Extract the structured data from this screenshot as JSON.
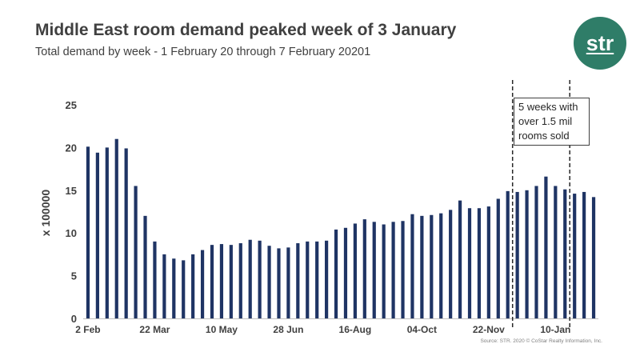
{
  "header": {
    "title": "Middle East room demand peaked week of 3 January",
    "subtitle": "Total demand by week - 1 February 20 through 7 February 20201"
  },
  "logo": {
    "text": "str",
    "color": "#2f7d68"
  },
  "source": "Source: STR. 2020 © CoStar Realty Information, Inc.",
  "chart_data": {
    "type": "bar",
    "ylabel": "x 100000",
    "xlabel": "",
    "ylim": [
      0,
      25
    ],
    "yticks": [
      0,
      5,
      10,
      15,
      20,
      25
    ],
    "grid": false,
    "bar_color": "#1f3464",
    "x_tick_labels": [
      {
        "label": "2 Feb",
        "index": 0
      },
      {
        "label": "22 Mar",
        "index": 7
      },
      {
        "label": "10 May",
        "index": 14
      },
      {
        "label": "28 Jun",
        "index": 21
      },
      {
        "label": "16-Aug",
        "index": 28
      },
      {
        "label": "04-Oct",
        "index": 35
      },
      {
        "label": "22-Nov",
        "index": 42
      },
      {
        "label": "10-Jan",
        "index": 49
      }
    ],
    "values": [
      20.1,
      19.4,
      20.0,
      21.0,
      19.9,
      15.5,
      12.0,
      9.0,
      7.5,
      7.0,
      6.8,
      7.5,
      8.0,
      8.6,
      8.7,
      8.6,
      8.8,
      9.2,
      9.1,
      8.5,
      8.2,
      8.3,
      8.8,
      9.0,
      9.0,
      9.1,
      10.4,
      10.6,
      11.1,
      11.6,
      11.3,
      11.0,
      11.3,
      11.4,
      12.2,
      12.0,
      12.1,
      12.3,
      12.7,
      13.8,
      12.9,
      12.9,
      13.1,
      14.0,
      14.9,
      14.8,
      15.0,
      15.5,
      16.6,
      15.5,
      15.1,
      14.6,
      14.8,
      14.2
    ],
    "annotation": {
      "lines": [
        "5 weeks with",
        "over 1.5 mil",
        "rooms sold"
      ],
      "start_index": 45,
      "end_index": 50
    }
  }
}
